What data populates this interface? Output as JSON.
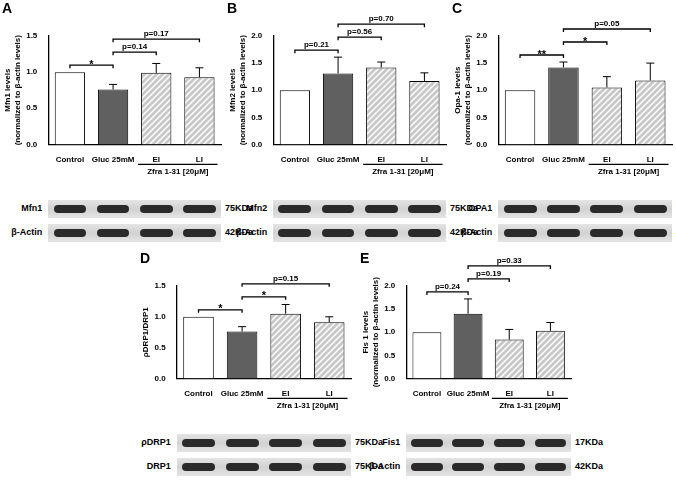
{
  "chart_data": [
    {
      "panel": "A",
      "type": "bar",
      "y_label": [
        "Mfn1 levels",
        "(normalized to β-actin levels)"
      ],
      "categories": [
        "Control",
        "Gluc 25mM",
        "EI",
        "LI"
      ],
      "values": [
        1.0,
        0.76,
        0.99,
        0.93
      ],
      "errors": [
        0,
        0.07,
        0.13,
        0.13
      ],
      "colors": [
        "#ffffff",
        "#606060",
        "#c8c8c8",
        "#c8c8c8"
      ],
      "ylim": [
        0,
        1.5
      ],
      "yticks": [
        {
          "value": 0,
          "label": "0.0"
        },
        {
          "value": 0.5,
          "label": "0.5"
        },
        {
          "value": 1,
          "label": "1.0"
        },
        {
          "value": 1.5,
          "label": "1.5"
        }
      ],
      "grid": false,
      "comparisons": [
        {
          "from": "Control",
          "to": "Gluc 25mM",
          "label": "*"
        },
        {
          "from": "Gluc 25mM",
          "to": "EI",
          "label": "p=0.14"
        },
        {
          "from": "Gluc 25mM",
          "to": "LI",
          "label": "p=0.17"
        }
      ],
      "group": {
        "label": "Zfra 1-31 [20μM]",
        "categories": [
          "EI",
          "LI"
        ]
      },
      "blot": [
        {
          "label": "Mfn1",
          "size": "75KDa"
        },
        {
          "label": "β-Actin",
          "size": "42KDa"
        }
      ]
    },
    {
      "panel": "B",
      "type": "bar",
      "y_label": [
        "Mfn2 levels",
        "(normalized to β-actin levels)"
      ],
      "categories": [
        "Control",
        "Gluc 25mM",
        "EI",
        "LI"
      ],
      "values": [
        1.0,
        1.31,
        1.42,
        1.17
      ],
      "errors": [
        0,
        0.3,
        0.1,
        0.15
      ],
      "colors": [
        "#ffffff",
        "#606060",
        "#c8c8c8",
        "#c8c8c8"
      ],
      "ylim": [
        0,
        2
      ],
      "yticks": [
        {
          "value": 0,
          "label": "0.0"
        },
        {
          "value": 0.5,
          "label": "0.5"
        },
        {
          "value": 1,
          "label": "1.0"
        },
        {
          "value": 1.5,
          "label": "1.5"
        },
        {
          "value": 2,
          "label": "2.0"
        }
      ],
      "grid": false,
      "comparisons": [
        {
          "from": "Control",
          "to": "Gluc 25mM",
          "label": "p=0.21"
        },
        {
          "from": "Gluc 25mM",
          "to": "EI",
          "label": "p=0.56"
        },
        {
          "from": "Gluc 25mM",
          "to": "LI",
          "label": "p=0.70"
        }
      ],
      "group": {
        "label": "Zfra 1-31 [20μM]",
        "categories": [
          "EI",
          "LI"
        ]
      },
      "blot": [
        {
          "label": "Mfn2",
          "size": "75KDa"
        },
        {
          "label": "β-Actin",
          "size": "42KDa"
        }
      ]
    },
    {
      "panel": "C",
      "type": "bar",
      "y_label": [
        "Opa-1 levels",
        "(normalized to β-actin levels)"
      ],
      "categories": [
        "Control",
        "Gluc 25mM",
        "EI",
        "LI"
      ],
      "values": [
        1.0,
        1.42,
        1.05,
        1.18
      ],
      "errors": [
        0,
        0.1,
        0.2,
        0.32
      ],
      "colors": [
        "#ffffff",
        "#606060",
        "#c8c8c8",
        "#c8c8c8"
      ],
      "ylim": [
        0,
        2
      ],
      "yticks": [
        {
          "value": 0,
          "label": "0.0"
        },
        {
          "value": 0.5,
          "label": "0.5"
        },
        {
          "value": 1,
          "label": "1.0"
        },
        {
          "value": 1.5,
          "label": "1.5"
        },
        {
          "value": 2,
          "label": "2.0"
        }
      ],
      "grid": false,
      "comparisons": [
        {
          "from": "Control",
          "to": "Gluc 25mM",
          "label": "**"
        },
        {
          "from": "Gluc 25mM",
          "to": "EI",
          "label": "*"
        },
        {
          "from": "Gluc 25mM",
          "to": "LI",
          "label": "p=0.05"
        }
      ],
      "group": {
        "label": "Zfra 1-31 [20μM]",
        "categories": [
          "EI",
          "LI"
        ]
      },
      "blot": [
        {
          "label": "OPA1",
          "size": "75KDa"
        },
        {
          "label": "β-Actin",
          "size": "42KDa"
        }
      ]
    },
    {
      "panel": "D",
      "type": "bar",
      "y_label": [
        "ρDRP1/DRP1"
      ],
      "categories": [
        "Control",
        "Gluc 25mM",
        "EI",
        "LI"
      ],
      "values": [
        1.0,
        0.76,
        1.05,
        0.91
      ],
      "errors": [
        0,
        0.08,
        0.15,
        0.09
      ],
      "colors": [
        "#ffffff",
        "#606060",
        "#c8c8c8",
        "#c8c8c8"
      ],
      "ylim": [
        0,
        1.5
      ],
      "yticks": [
        {
          "value": 0,
          "label": "0.0"
        },
        {
          "value": 0.5,
          "label": "0.5"
        },
        {
          "value": 1,
          "label": "1.0"
        },
        {
          "value": 1.5,
          "label": "1.5"
        }
      ],
      "grid": false,
      "comparisons": [
        {
          "from": "Control",
          "to": "Gluc 25mM",
          "label": "*"
        },
        {
          "from": "Gluc 25mM",
          "to": "EI",
          "label": "*"
        },
        {
          "from": "Gluc 25mM",
          "to": "LI",
          "label": "p=0.15"
        }
      ],
      "group": {
        "label": "Zfra 1-31 [20μM]",
        "categories": [
          "EI",
          "LI"
        ]
      },
      "blot": [
        {
          "label": "ρDRP1",
          "size": "75KDa"
        },
        {
          "label": "DRP1",
          "size": "75KDa"
        }
      ]
    },
    {
      "panel": "E",
      "type": "bar",
      "y_label": [
        "Fis 1 levels",
        "(normalized to β-actin levels)"
      ],
      "categories": [
        "Control",
        "Gluc 25mM",
        "EI",
        "LI"
      ],
      "values": [
        1.0,
        1.4,
        0.84,
        1.03
      ],
      "errors": [
        0,
        0.32,
        0.22,
        0.18
      ],
      "colors": [
        "#ffffff",
        "#606060",
        "#c8c8c8",
        "#c8c8c8"
      ],
      "ylim": [
        0,
        2
      ],
      "yticks": [
        {
          "value": 0,
          "label": "0.0"
        },
        {
          "value": 0.5,
          "label": "0.5"
        },
        {
          "value": 1,
          "label": "1.0"
        },
        {
          "value": 1.5,
          "label": "1.5"
        },
        {
          "value": 2,
          "label": "2.0"
        }
      ],
      "grid": false,
      "comparisons": [
        {
          "from": "Control",
          "to": "Gluc 25mM",
          "label": "p=0.24"
        },
        {
          "from": "Gluc 25mM",
          "to": "EI",
          "label": "p=0.19"
        },
        {
          "from": "Gluc 25mM",
          "to": "LI",
          "label": "p=0.33"
        }
      ],
      "group": {
        "label": "Zfra 1-31 [20μM]",
        "categories": [
          "EI",
          "LI"
        ]
      },
      "blot": [
        {
          "label": "Fis1",
          "size": "17KDa"
        },
        {
          "label": "β-Actin",
          "size": "42KDa"
        }
      ]
    }
  ]
}
